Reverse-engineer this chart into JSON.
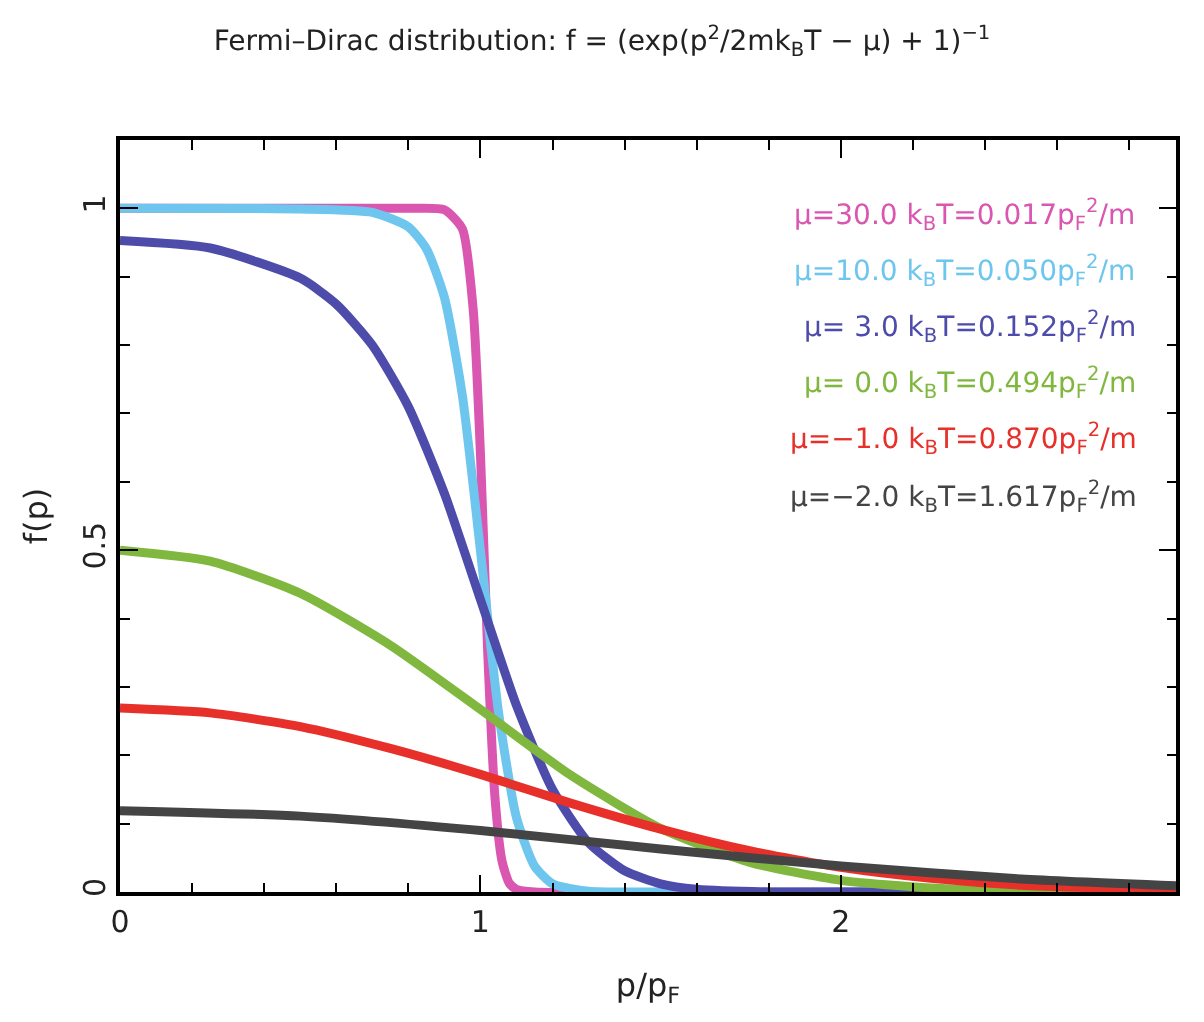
{
  "chart_data": {
    "type": "line",
    "title": "Fermi–Dirac distribution: f = (exp(p$^{2}$/2mk$_{B}$T − μ) + 1)$^{−1}$",
    "xlabel": "p/p$_{F}$",
    "ylabel": "f(p)",
    "xlim": [
      0,
      2.93
    ],
    "xticks": [
      0,
      1,
      2
    ],
    "ylim": [
      0,
      1.1
    ],
    "yticks": [
      0,
      0.5,
      1
    ],
    "legend": "top right",
    "marker": "none",
    "line_style": "solid",
    "series": [
      {
        "name": "μ=30.0 k$_{B}$T=0.017p$_{F}$$^{2}$/m",
        "color": "#d957b0",
        "x": [
          0,
          0.5,
          0.8,
          0.9,
          0.95,
          0.98,
          1.0,
          1.02,
          1.04,
          1.06,
          1.08,
          1.1,
          1.15,
          2.0,
          2.93
        ],
        "values": [
          1.0,
          1.0,
          1.0,
          0.998,
          0.97,
          0.852,
          0.643,
          0.354,
          0.141,
          0.045,
          0.013,
          0.004,
          0.0,
          0.0,
          0.0
        ]
      },
      {
        "name": "μ=10.0 k$_{B}$T=0.050p$_{F}$$^{2}$/m",
        "color": "#6ec6ee",
        "x": [
          0,
          0.5,
          0.7,
          0.8,
          0.85,
          0.9,
          0.95,
          1.0,
          1.05,
          1.1,
          1.15,
          1.2,
          1.3,
          1.5,
          2.0,
          2.93
        ],
        "values": [
          1.0,
          0.999,
          0.994,
          0.973,
          0.941,
          0.87,
          0.726,
          0.5,
          0.264,
          0.109,
          0.038,
          0.012,
          0.001,
          0.0,
          0.0,
          0.0
        ]
      },
      {
        "name": "μ= 3.0 k$_{B}$T=0.152p$_{F}$$^{2}$/m",
        "color": "#4d4cab",
        "x": [
          0,
          0.25,
          0.5,
          0.6,
          0.7,
          0.8,
          0.9,
          1.0,
          1.1,
          1.2,
          1.3,
          1.4,
          1.5,
          1.6,
          1.8,
          2.0,
          2.93
        ],
        "values": [
          0.953,
          0.942,
          0.898,
          0.86,
          0.8,
          0.71,
          0.583,
          0.428,
          0.273,
          0.15,
          0.072,
          0.031,
          0.012,
          0.004,
          0.0,
          0.0,
          0.0
        ]
      },
      {
        "name": "μ= 0.0 k$_{B}$T=0.494p$_{F}$$^{2}$/m",
        "color": "#80b83f",
        "x": [
          0,
          0.25,
          0.5,
          0.75,
          1.0,
          1.25,
          1.5,
          1.75,
          2.0,
          2.25,
          2.5,
          2.93
        ],
        "values": [
          0.5,
          0.484,
          0.437,
          0.361,
          0.267,
          0.171,
          0.093,
          0.043,
          0.017,
          0.006,
          0.002,
          0.0
        ]
      },
      {
        "name": "μ=−1.0 k$_{B}$T=0.870p$_{F}$$^{2}$/m",
        "color": "#e8302a",
        "x": [
          0,
          0.25,
          0.5,
          0.75,
          1.0,
          1.25,
          1.5,
          1.75,
          2.0,
          2.25,
          2.5,
          2.93
        ],
        "values": [
          0.269,
          0.262,
          0.242,
          0.21,
          0.172,
          0.13,
          0.092,
          0.06,
          0.036,
          0.02,
          0.01,
          0.003
        ]
      },
      {
        "name": "μ=−2.0 k$_{B}$T=1.617p$_{F}$$^{2}$/m",
        "color": "#444444",
        "x": [
          0,
          0.5,
          1.0,
          1.5,
          2.0,
          2.5,
          2.93
        ],
        "values": [
          0.119,
          0.111,
          0.09,
          0.063,
          0.038,
          0.019,
          0.009
        ]
      }
    ]
  }
}
